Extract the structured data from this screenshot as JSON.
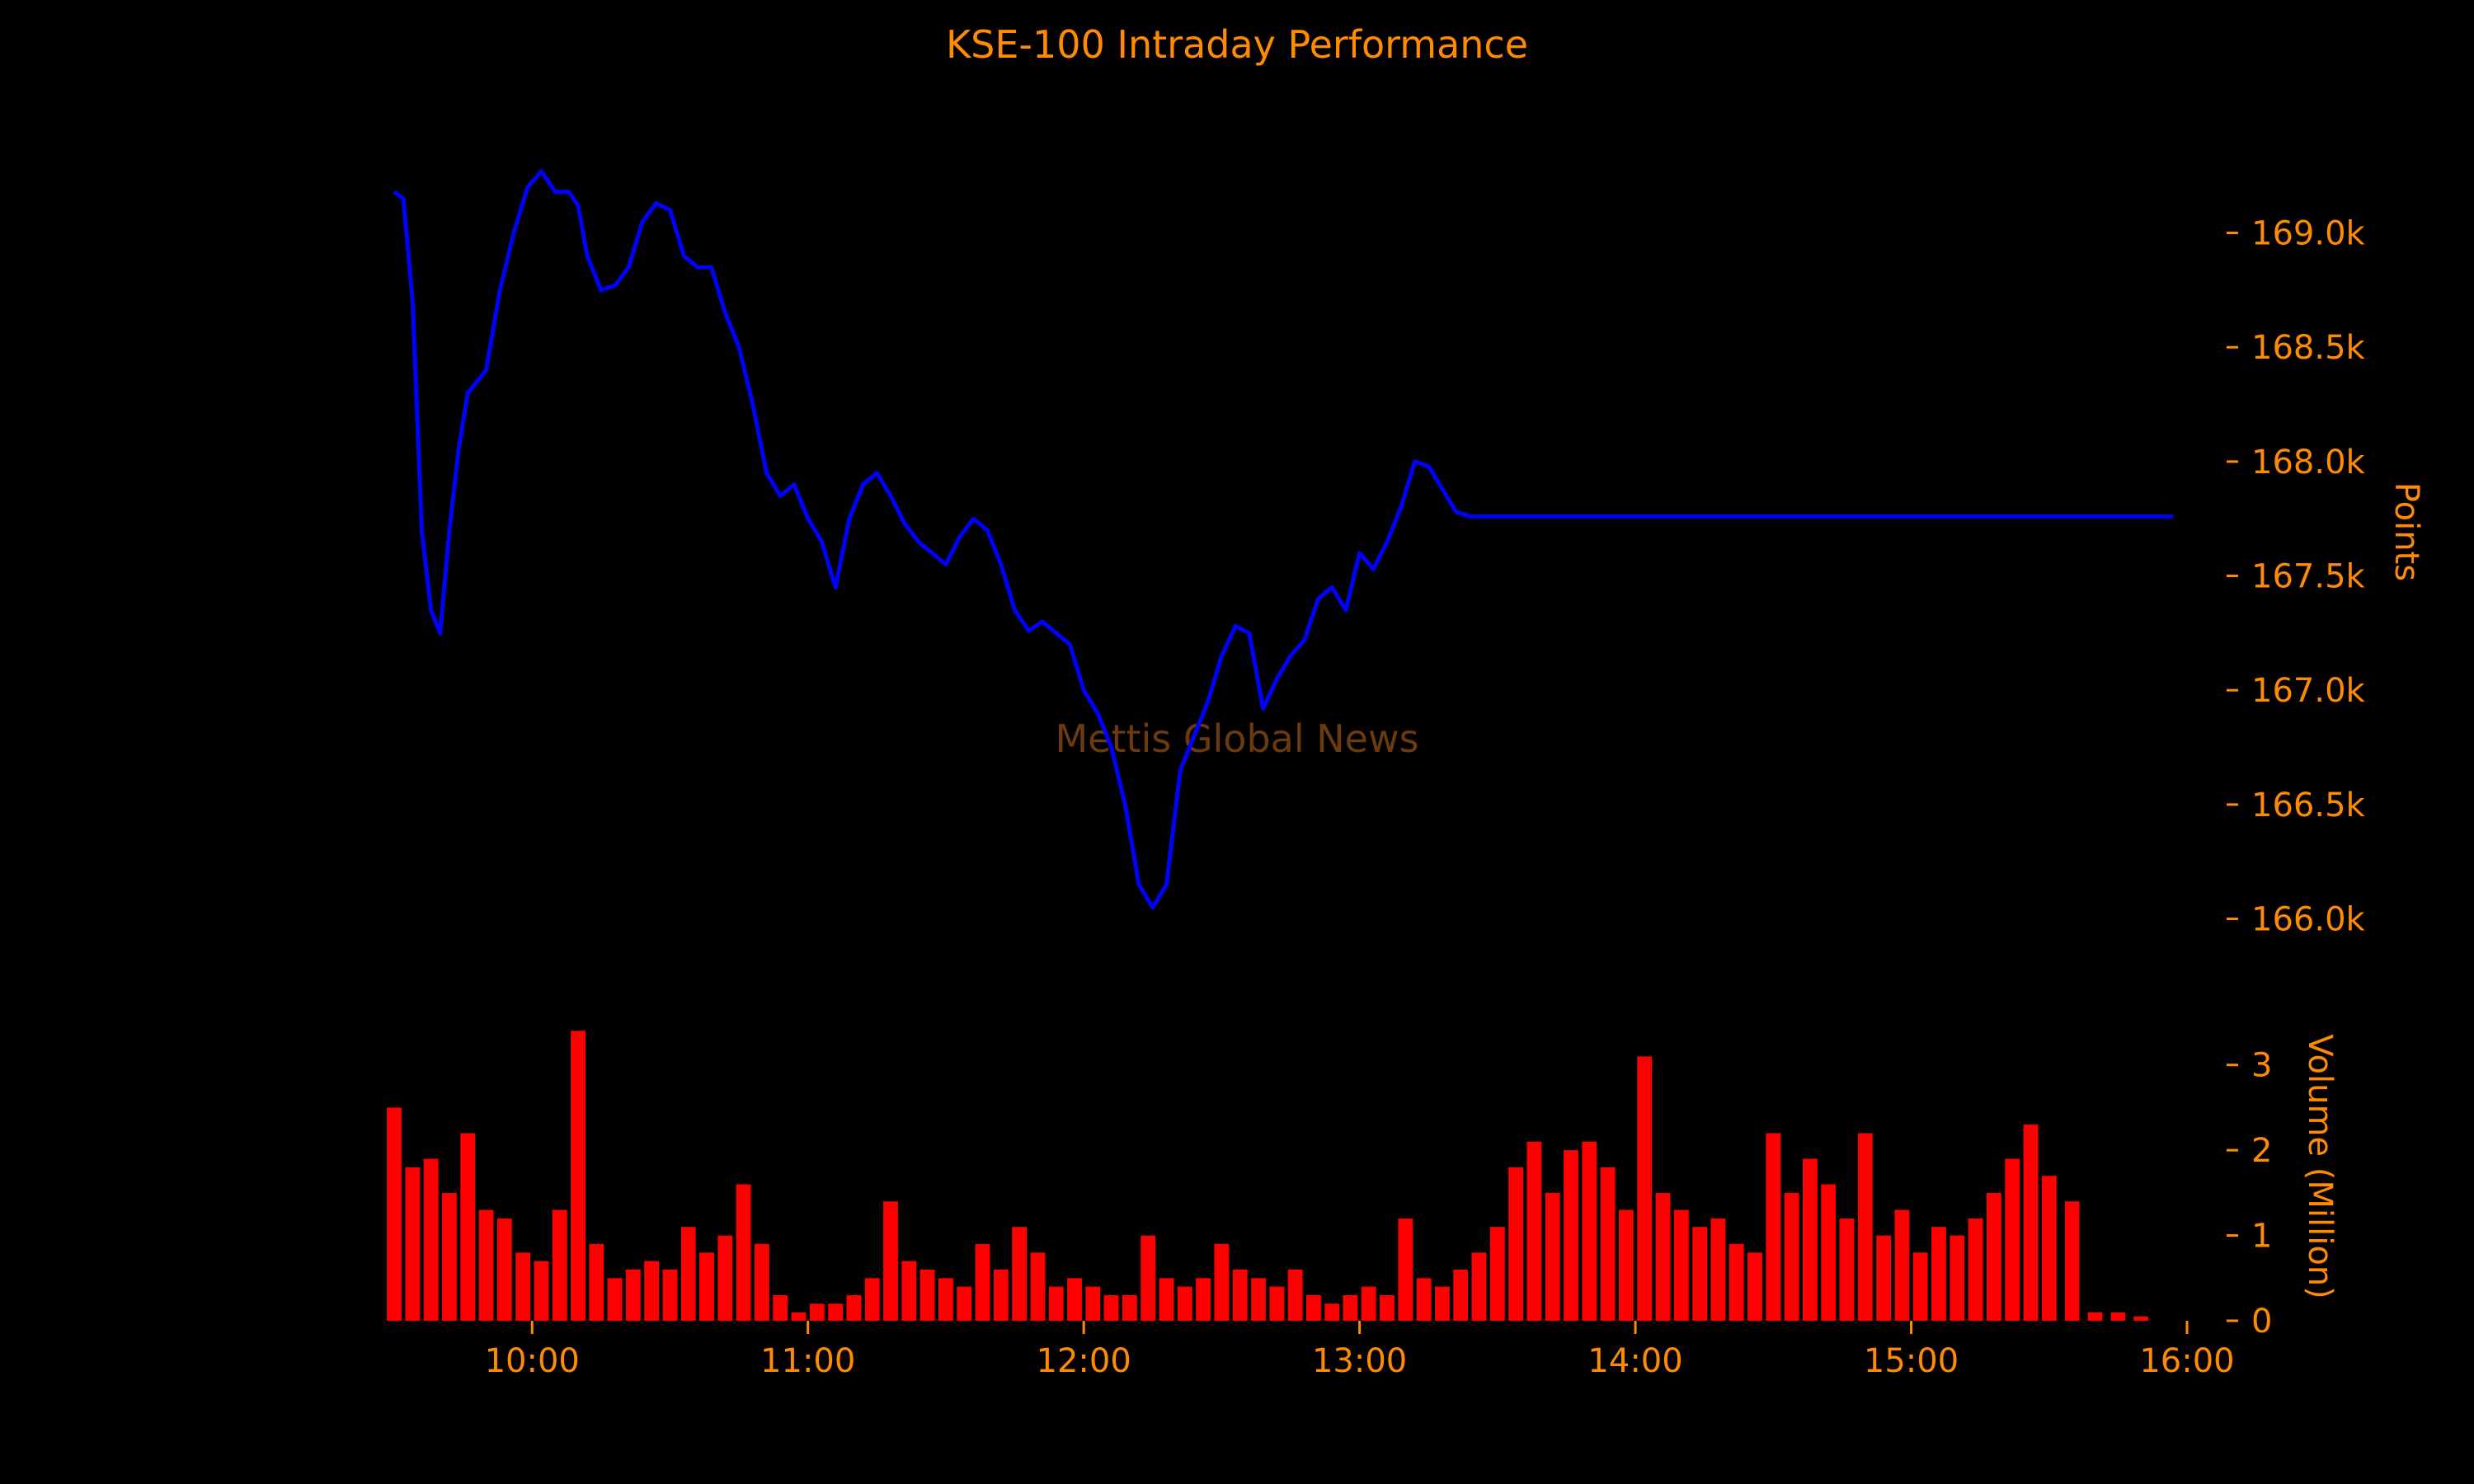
{
  "colors": {
    "background": "#000000",
    "text": "#FF8C00",
    "price_line": "#0000FF",
    "volume_bars": "#FF0000",
    "watermark": "#6B3A0E"
  },
  "watermark": "Mettis Global News",
  "chart_data": [
    {
      "type": "line",
      "title": "KSE-100 Intraday Performance",
      "ylabel": "Points",
      "xlim": [
        "09:30",
        "16:00"
      ],
      "ylim": [
        165800,
        169550
      ],
      "yticks": [
        166000,
        166500,
        167000,
        167500,
        168000,
        168500,
        169000
      ],
      "ytick_labels": [
        "166.0k",
        "166.5k",
        "167.0k",
        "167.5k",
        "168.0k",
        "168.5k",
        "169.0k"
      ],
      "series": [
        {
          "x": [
            "09:30",
            "09:32",
            "09:34",
            "09:36",
            "09:38",
            "09:40",
            "09:42",
            "09:44",
            "09:46",
            "09:48",
            "09:50",
            "09:53",
            "09:56",
            "09:59",
            "10:02",
            "10:05",
            "10:08",
            "10:10",
            "10:12",
            "10:15",
            "10:18",
            "10:21",
            "10:24",
            "10:27",
            "10:30",
            "10:33",
            "10:36",
            "10:39",
            "10:42",
            "10:45",
            "10:48",
            "10:51",
            "10:54",
            "10:57",
            "11:00",
            "11:03",
            "11:06",
            "11:09",
            "11:12",
            "11:15",
            "11:18",
            "11:21",
            "11:24",
            "11:27",
            "11:30",
            "11:33",
            "11:36",
            "11:39",
            "11:42",
            "11:45",
            "11:48",
            "11:51",
            "11:54",
            "11:57",
            "12:00",
            "12:03",
            "12:06",
            "12:09",
            "12:12",
            "12:15",
            "12:18",
            "12:21",
            "12:24",
            "12:27",
            "12:30",
            "12:33",
            "12:36",
            "12:39",
            "12:42",
            "12:45",
            "12:48",
            "12:51",
            "12:54",
            "12:57",
            "13:00",
            "13:03",
            "13:06",
            "13:09",
            "13:12",
            "13:15",
            "13:18",
            "13:21",
            "13:24",
            "13:27",
            "13:30",
            "13:33",
            "13:36",
            "13:39",
            "13:42",
            "13:45",
            "13:48",
            "13:51",
            "13:54",
            "13:57",
            "14:00",
            "14:03",
            "14:06",
            "14:09",
            "14:12",
            "14:15",
            "14:18",
            "14:21",
            "14:24",
            "14:27",
            "14:30",
            "14:33",
            "14:36",
            "14:39",
            "14:42",
            "14:45",
            "14:48",
            "14:51",
            "14:54",
            "14:57",
            "15:00",
            "15:03",
            "15:06",
            "15:09",
            "15:12",
            "15:15",
            "15:18",
            "15:21",
            "15:24",
            "15:27",
            "15:30",
            "15:33",
            "15:36",
            "15:39",
            "15:42",
            "15:45",
            "15:48",
            "15:51",
            "15:54",
            "15:57"
          ],
          "values": [
            169180,
            169150,
            168700,
            167700,
            167350,
            167250,
            167700,
            168050,
            168300,
            168350,
            168400,
            168750,
            169000,
            169200,
            169270,
            169180,
            169180,
            169120,
            168900,
            168750,
            168770,
            168850,
            169050,
            169130,
            169100,
            168900,
            168850,
            168850,
            168650,
            168500,
            168250,
            167950,
            167850,
            167900,
            167750,
            167650,
            167450,
            167750,
            167900,
            167950,
            167850,
            167730,
            167650,
            167600,
            167550,
            167670,
            167750,
            167700,
            167550,
            167350,
            167260,
            167300,
            167250,
            167200,
            167000,
            166900,
            166750,
            166500,
            166150,
            166050,
            166150,
            166650,
            166800,
            166950,
            167150,
            167280,
            167250,
            166920,
            167050,
            167150,
            167220,
            167400,
            167450,
            167350,
            167600,
            167530,
            167650,
            167800,
            168000,
            167980,
            167880,
            167780,
            167760,
            167760,
            167760,
            167760,
            167760,
            167760,
            167760,
            167760,
            167760,
            167760,
            167760,
            167760,
            167760,
            167760,
            167760,
            167760,
            167760,
            167760,
            167760,
            167760,
            167760,
            167760,
            167760,
            167760,
            167760,
            167760,
            167760,
            167760,
            167760,
            167760,
            167760,
            167760,
            167760,
            167760,
            167760,
            167760,
            167760,
            167760,
            167760,
            167760,
            167760,
            167760,
            167760,
            167760,
            167760,
            167760,
            167760,
            167760,
            167760,
            167760,
            167760,
            167760
          ]
        }
      ]
    },
    {
      "type": "bar",
      "ylabel": "Volume (Million)",
      "xlim": [
        "09:30",
        "16:00"
      ],
      "ylim": [
        0,
        3.5
      ],
      "yticks": [
        0,
        1,
        2,
        3
      ],
      "xticks": [
        "10:00",
        "11:00",
        "12:00",
        "13:00",
        "14:00",
        "15:00",
        "16:00"
      ],
      "series": [
        {
          "x": [
            "09:30",
            "09:34",
            "09:38",
            "09:42",
            "09:46",
            "09:50",
            "09:54",
            "09:58",
            "10:02",
            "10:06",
            "10:10",
            "10:14",
            "10:18",
            "10:22",
            "10:26",
            "10:30",
            "10:34",
            "10:38",
            "10:42",
            "10:46",
            "10:50",
            "10:54",
            "10:58",
            "11:02",
            "11:06",
            "11:10",
            "11:14",
            "11:18",
            "11:22",
            "11:26",
            "11:30",
            "11:34",
            "11:38",
            "11:42",
            "11:46",
            "11:50",
            "11:54",
            "11:58",
            "12:02",
            "12:06",
            "12:10",
            "12:14",
            "12:18",
            "12:22",
            "12:26",
            "12:30",
            "12:34",
            "12:38",
            "12:42",
            "12:46",
            "12:50",
            "12:54",
            "12:58",
            "13:02",
            "13:06",
            "13:10",
            "13:14",
            "13:18",
            "13:22",
            "13:26",
            "13:30",
            "13:34",
            "13:38",
            "13:42",
            "13:46",
            "13:50",
            "13:54",
            "13:58",
            "14:02",
            "14:06",
            "14:10",
            "14:14",
            "14:18",
            "14:22",
            "14:26",
            "14:30",
            "14:34",
            "14:38",
            "14:42",
            "14:46",
            "14:50",
            "14:54",
            "14:58",
            "15:02",
            "15:06",
            "15:10",
            "15:14",
            "15:18",
            "15:22",
            "15:26",
            "15:30",
            "15:35",
            "15:40",
            "15:45",
            "15:50"
          ],
          "values": [
            2.5,
            1.8,
            1.9,
            1.5,
            2.2,
            1.3,
            1.2,
            0.8,
            0.7,
            1.3,
            3.4,
            0.9,
            0.5,
            0.6,
            0.7,
            0.6,
            1.1,
            0.8,
            1.0,
            1.6,
            0.9,
            0.3,
            0.1,
            0.2,
            0.2,
            0.3,
            0.5,
            1.4,
            0.7,
            0.6,
            0.5,
            0.4,
            0.9,
            0.6,
            1.1,
            0.8,
            0.4,
            0.5,
            0.4,
            0.3,
            0.3,
            1.0,
            0.5,
            0.4,
            0.5,
            0.9,
            0.6,
            0.5,
            0.4,
            0.6,
            0.3,
            0.2,
            0.3,
            0.4,
            0.3,
            1.2,
            0.5,
            0.4,
            0.6,
            0.8,
            1.1,
            1.8,
            2.1,
            1.5,
            2.0,
            2.1,
            1.8,
            1.3,
            3.1,
            1.5,
            1.3,
            1.1,
            1.2,
            0.9,
            0.8,
            2.2,
            1.5,
            1.9,
            1.6,
            1.2,
            2.2,
            1.0,
            1.3,
            0.8,
            1.1,
            1.0,
            1.2,
            1.5,
            1.9,
            2.3,
            1.7,
            1.4,
            0.1,
            0.1,
            0.05
          ]
        }
      ]
    }
  ]
}
